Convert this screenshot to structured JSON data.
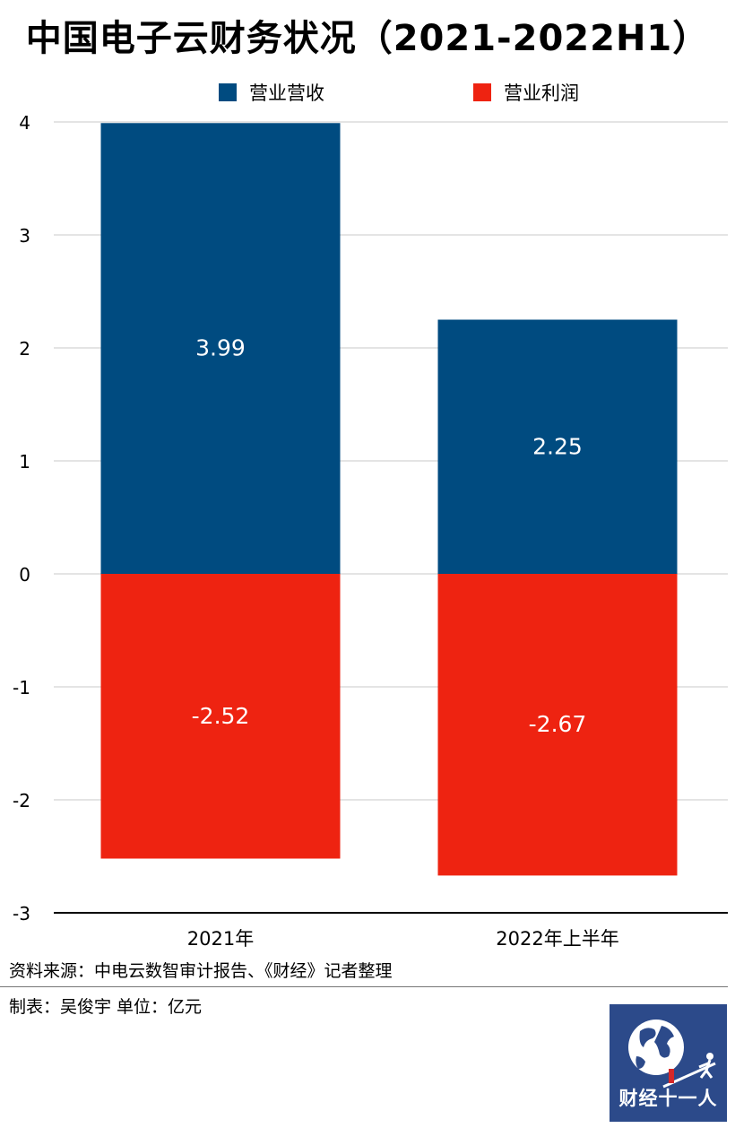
{
  "title": "中国电子云财务状况（2021-2022H1）",
  "legend": [
    {
      "label": "营业营收",
      "color": "#004b80"
    },
    {
      "label": "营业利润",
      "color": "#ee2311"
    }
  ],
  "footer": {
    "source": "资料来源：中电云数智审计报告、《财经》记者整理",
    "credit": "制表：吴俊宇     单位：亿元"
  },
  "logo": {
    "text": "财经十一人",
    "icon": "globe-icon"
  },
  "chart_data": {
    "type": "bar",
    "stacked": true,
    "categories": [
      "2021年",
      "2022年上半年"
    ],
    "series": [
      {
        "name": "营业营收",
        "values": [
          3.99,
          2.25
        ],
        "color": "#004b80"
      },
      {
        "name": "营业利润",
        "values": [
          -2.52,
          -2.67
        ],
        "color": "#ee2311"
      }
    ],
    "data_labels": [
      [
        "3.99",
        "2.25"
      ],
      [
        "-2.52",
        "-2.67"
      ]
    ],
    "ylim": [
      -3,
      4
    ],
    "yticks": [
      4,
      3,
      2,
      1,
      0,
      -1,
      -2,
      -3
    ],
    "grid": true,
    "legend_position": "top"
  }
}
